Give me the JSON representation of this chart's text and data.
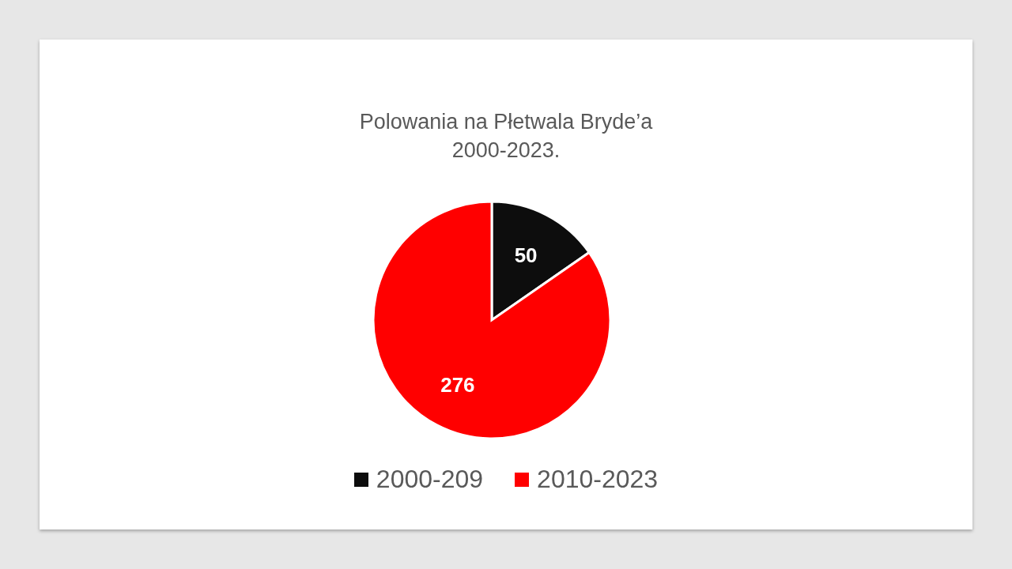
{
  "chart_data": {
    "type": "pie",
    "title": "Polowania na Płetwala Bryde’a",
    "subtitle": "2000-2023.",
    "categories": [
      "2000-209",
      "2010-2023"
    ],
    "values": [
      50,
      276
    ],
    "colors": [
      "#0d0d0d",
      "#ff0000"
    ],
    "data_labels": true,
    "legend": "bottom"
  }
}
